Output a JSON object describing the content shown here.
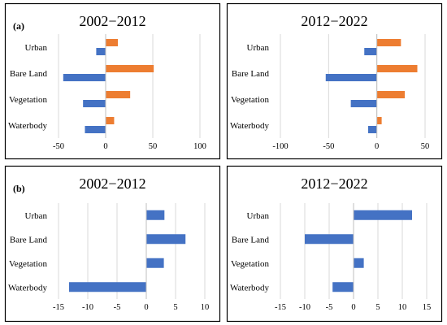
{
  "chart_data": [
    {
      "type": "bar",
      "orientation": "horizontal",
      "panel_label": "(a)",
      "title": "2002−2012",
      "categories": [
        "Urban",
        "Bare Land",
        "Vegetation",
        "Waterbody"
      ],
      "series": [
        {
          "values": [
            -10,
            -45,
            -24,
            -22
          ],
          "color": "#4472C4"
        },
        {
          "values": [
            13,
            51,
            26,
            9
          ],
          "color": "#ED7D31"
        }
      ],
      "xlim": [
        -50,
        100
      ],
      "xticks": [
        -50,
        0,
        50,
        100
      ],
      "xtick_labels": [
        "-50",
        "0",
        "50",
        "100"
      ],
      "grid": true
    },
    {
      "type": "bar",
      "orientation": "horizontal",
      "panel_label": "",
      "title": "2012−2022",
      "categories": [
        "Urban",
        "Bare Land",
        "Vegetation",
        "Waterbody"
      ],
      "series": [
        {
          "values": [
            -13,
            -53,
            -27,
            -9
          ],
          "color": "#4472C4"
        },
        {
          "values": [
            25,
            42,
            29,
            5
          ],
          "color": "#ED7D31"
        }
      ],
      "xlim": [
        -100,
        50
      ],
      "xticks": [
        -100,
        -50,
        0,
        50
      ],
      "xtick_labels": [
        "-100",
        "-50",
        "0",
        "50"
      ],
      "grid": true
    },
    {
      "type": "bar",
      "orientation": "horizontal",
      "panel_label": "(b)",
      "title": "2002−2012",
      "categories": [
        "Urban",
        "Bare Land",
        "Vegetation",
        "Waterbody"
      ],
      "series": [
        {
          "values": [
            3.1,
            6.7,
            3.0,
            -13.2
          ],
          "color": "#4472C4"
        }
      ],
      "xlim": [
        -15,
        10
      ],
      "xticks": [
        -15,
        -10,
        -5,
        0,
        5,
        10
      ],
      "xtick_labels": [
        "-15",
        "-10",
        "-5",
        "0",
        "5",
        "10"
      ],
      "grid": true
    },
    {
      "type": "bar",
      "orientation": "horizontal",
      "panel_label": "",
      "title": "2012−2022",
      "categories": [
        "Urban",
        "Bare Land",
        "Vegetation",
        "Waterbody"
      ],
      "series": [
        {
          "values": [
            12,
            -10,
            2.1,
            -4.3
          ],
          "color": "#4472C4"
        }
      ],
      "xlim": [
        -15,
        15
      ],
      "xticks": [
        -15,
        -10,
        -5,
        0,
        5,
        10,
        15
      ],
      "xtick_labels": [
        "-15",
        "-10",
        "-5",
        "0",
        "5",
        "10",
        "15"
      ],
      "grid": true
    }
  ]
}
